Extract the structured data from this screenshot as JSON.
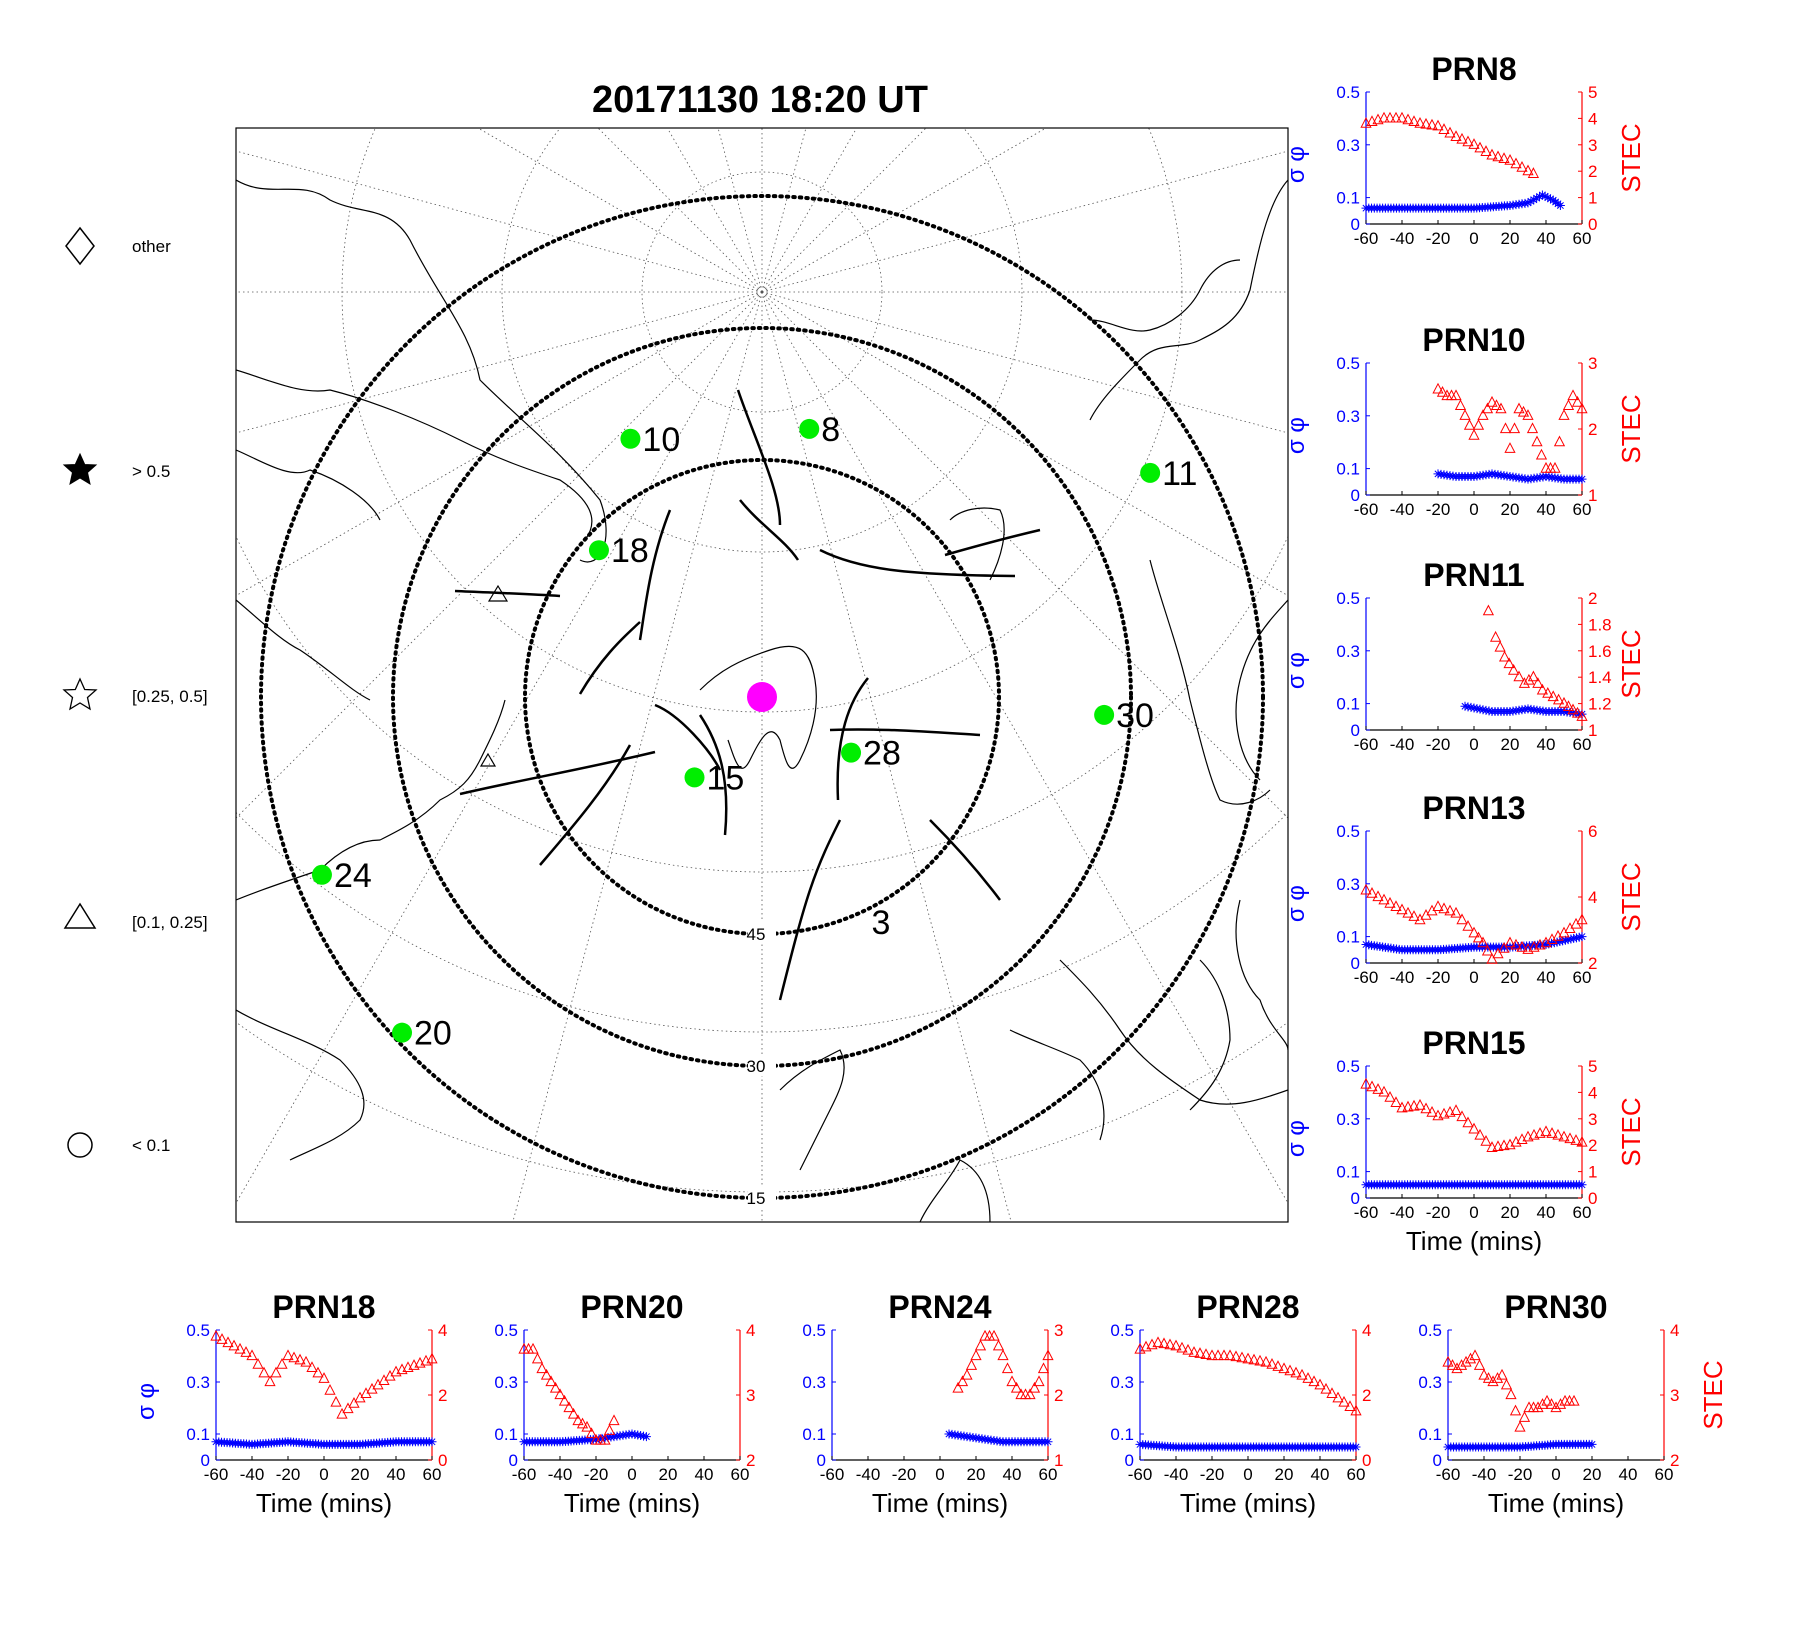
{
  "figure": {
    "title": "20171130 18:20 UT",
    "colors": {
      "sigma": "#0000ff",
      "stec": "#ff0000",
      "satellite": "#00ee00",
      "station": "#ff00ff"
    }
  },
  "legend": {
    "items": [
      {
        "symbol": "diamond",
        "label": "other"
      },
      {
        "symbol": "filled-star",
        "label": "> 0.5"
      },
      {
        "symbol": "open-star",
        "label": "[0.25, 0.5]"
      },
      {
        "symbol": "triangle",
        "label": "[0.1, 0.25]"
      },
      {
        "symbol": "circle",
        "label": "< 0.1"
      }
    ]
  },
  "chart_data": [
    {
      "type": "polar-skymap",
      "title": "20171130 18:20 UT",
      "elevation_rings": [
        {
          "label": "45"
        },
        {
          "label": "30"
        },
        {
          "label": "15"
        }
      ],
      "satellites": [
        {
          "prn": "8",
          "azimuth": 10,
          "elevation": 41
        },
        {
          "prn": "10",
          "azimuth": -27,
          "elevation": 39
        },
        {
          "prn": "11",
          "azimuth": 60,
          "elevation": 21
        },
        {
          "prn": "18",
          "azimuth": -48,
          "elevation": 47
        },
        {
          "prn": "15",
          "azimuth": -140,
          "elevation": 60
        },
        {
          "prn": "28",
          "azimuth": 122,
          "elevation": 60
        },
        {
          "prn": "30",
          "azimuth": 93,
          "elevation": 33
        },
        {
          "prn": "24",
          "azimuth": -112,
          "elevation": 18
        },
        {
          "prn": "20",
          "azimuth": -133,
          "elevation": 16
        },
        {
          "prn": "3",
          "azimuth": 152,
          "elevation": 43
        }
      ]
    },
    {
      "type": "line",
      "title": "PRN8",
      "xlabel": "",
      "ylabel_left": "σ φ",
      "ylabel_right": "STEC",
      "xlim": [
        -60,
        60
      ],
      "ylim_left": [
        0,
        0.5
      ],
      "ylim_right": [
        0,
        5
      ],
      "xticks": [
        "-60",
        "-40",
        "-20",
        "0",
        "20",
        "40",
        "60"
      ],
      "yticks_left": [
        "0",
        "0.1",
        "0.3",
        "0.5"
      ],
      "yticks_right": [
        "0",
        "1",
        "2",
        "3",
        "4",
        "5"
      ],
      "series": [
        {
          "name": "sigma_phi",
          "axis": "left",
          "marker": "asterisk",
          "x": [
            -60,
            -40,
            -20,
            0,
            20,
            30,
            38,
            44,
            48
          ],
          "values": [
            0.06,
            0.06,
            0.06,
            0.06,
            0.07,
            0.08,
            0.11,
            0.09,
            0.07
          ]
        },
        {
          "name": "STEC",
          "axis": "right",
          "marker": "triangle",
          "x": [
            -60,
            -50,
            -40,
            -30,
            -20,
            -10,
            0,
            10,
            20,
            30,
            33
          ],
          "values": [
            3.8,
            4.0,
            4.0,
            3.8,
            3.7,
            3.3,
            3.0,
            2.6,
            2.4,
            2.0,
            1.9
          ]
        }
      ]
    },
    {
      "type": "line",
      "title": "PRN10",
      "xlabel": "",
      "ylabel_left": "σ φ",
      "ylabel_right": "STEC",
      "xlim": [
        -60,
        60
      ],
      "ylim_left": [
        0,
        0.5
      ],
      "ylim_right": [
        1,
        3
      ],
      "xticks": [
        "-60",
        "-40",
        "-20",
        "0",
        "20",
        "40",
        "60"
      ],
      "yticks_left": [
        "0",
        "0.1",
        "0.3",
        "0.5"
      ],
      "yticks_right": [
        "1",
        "2",
        "3"
      ],
      "series": [
        {
          "name": "sigma_phi",
          "axis": "left",
          "marker": "asterisk",
          "x": [
            -20,
            -10,
            0,
            10,
            20,
            30,
            40,
            50,
            60
          ],
          "values": [
            0.08,
            0.07,
            0.07,
            0.08,
            0.07,
            0.06,
            0.07,
            0.06,
            0.06
          ]
        },
        {
          "name": "STEC",
          "axis": "right",
          "marker": "triangle",
          "x": [
            -20,
            -15,
            -10,
            -5,
            0,
            5,
            10,
            15,
            20,
            25,
            30,
            35,
            40,
            45,
            50,
            55,
            60
          ],
          "values": [
            2.6,
            2.5,
            2.5,
            2.2,
            1.9,
            2.2,
            2.4,
            2.3,
            1.7,
            2.3,
            2.2,
            1.8,
            1.4,
            1.4,
            2.2,
            2.5,
            2.3
          ]
        }
      ]
    },
    {
      "type": "line",
      "title": "PRN11",
      "xlabel": "",
      "ylabel_left": "σ φ",
      "ylabel_right": "STEC",
      "xlim": [
        -60,
        60
      ],
      "ylim_left": [
        0,
        0.5
      ],
      "ylim_right": [
        1,
        2
      ],
      "xticks": [
        "-60",
        "-40",
        "-20",
        "0",
        "20",
        "40",
        "60"
      ],
      "yticks_left": [
        "0",
        "0.1",
        "0.3",
        "0.5"
      ],
      "yticks_right": [
        "1",
        "1.2",
        "1.4",
        "1.6",
        "1.8",
        "2"
      ],
      "series": [
        {
          "name": "sigma_phi",
          "axis": "left",
          "marker": "asterisk",
          "x": [
            -5,
            10,
            20,
            30,
            40,
            50,
            60
          ],
          "values": [
            0.09,
            0.07,
            0.07,
            0.08,
            0.07,
            0.07,
            0.06
          ]
        },
        {
          "name": "STEC",
          "axis": "right",
          "marker": "triangle",
          "x": [
            8,
            12,
            17,
            22,
            28,
            33,
            38,
            44,
            50,
            55,
            60
          ],
          "values": [
            1.9,
            1.7,
            1.55,
            1.45,
            1.35,
            1.4,
            1.3,
            1.25,
            1.2,
            1.15,
            1.1
          ]
        }
      ]
    },
    {
      "type": "line",
      "title": "PRN13",
      "xlabel": "",
      "ylabel_left": "σ φ",
      "ylabel_right": "STEC",
      "xlim": [
        -60,
        60
      ],
      "ylim_left": [
        0,
        0.5
      ],
      "ylim_right": [
        2,
        6
      ],
      "xticks": [
        "-60",
        "-40",
        "-20",
        "0",
        "20",
        "40",
        "60"
      ],
      "yticks_left": [
        "0",
        "0.1",
        "0.3",
        "0.5"
      ],
      "yticks_right": [
        "2",
        "4",
        "6"
      ],
      "series": [
        {
          "name": "sigma_phi",
          "axis": "left",
          "marker": "asterisk",
          "x": [
            -60,
            -40,
            -20,
            0,
            20,
            40,
            60
          ],
          "values": [
            0.07,
            0.05,
            0.05,
            0.06,
            0.06,
            0.07,
            0.1
          ]
        },
        {
          "name": "STEC",
          "axis": "right",
          "marker": "triangle",
          "x": [
            -60,
            -50,
            -40,
            -30,
            -20,
            -10,
            0,
            5,
            10,
            20,
            30,
            40,
            50,
            60
          ],
          "values": [
            4.2,
            3.9,
            3.6,
            3.3,
            3.7,
            3.5,
            2.9,
            2.6,
            2.1,
            2.6,
            2.4,
            2.6,
            2.9,
            3.3
          ]
        }
      ]
    },
    {
      "type": "line",
      "title": "PRN15",
      "xlabel": "Time (mins)",
      "ylabel_left": "σ φ",
      "ylabel_right": "STEC",
      "xlim": [
        -60,
        60
      ],
      "ylim_left": [
        0,
        0.5
      ],
      "ylim_right": [
        0,
        5
      ],
      "xticks": [
        "-60",
        "-40",
        "-20",
        "0",
        "20",
        "40",
        "60"
      ],
      "yticks_left": [
        "0",
        "0.1",
        "0.3",
        "0.5"
      ],
      "yticks_right": [
        "0",
        "1",
        "2",
        "3",
        "4",
        "5"
      ],
      "series": [
        {
          "name": "sigma_phi",
          "axis": "left",
          "marker": "asterisk",
          "x": [
            -60,
            -40,
            -20,
            0,
            20,
            40,
            60
          ],
          "values": [
            0.05,
            0.05,
            0.05,
            0.05,
            0.05,
            0.05,
            0.05
          ]
        },
        {
          "name": "STEC",
          "axis": "right",
          "marker": "triangle",
          "x": [
            -60,
            -50,
            -40,
            -30,
            -20,
            -10,
            0,
            10,
            20,
            30,
            40,
            50,
            60
          ],
          "values": [
            4.3,
            4.0,
            3.4,
            3.5,
            3.1,
            3.3,
            2.6,
            1.9,
            2.0,
            2.3,
            2.5,
            2.3,
            2.1
          ]
        }
      ]
    },
    {
      "type": "line",
      "title": "PRN18",
      "xlabel": "Time (mins)",
      "ylabel_left": "σ φ",
      "ylabel_right": "",
      "xlim": [
        -60,
        60
      ],
      "ylim_left": [
        0,
        0.5
      ],
      "ylim_right": [
        0,
        4
      ],
      "xticks": [
        "-60",
        "-40",
        "-20",
        "0",
        "20",
        "40",
        "60"
      ],
      "yticks_left": [
        "0",
        "0.1",
        "0.3",
        "0.5"
      ],
      "yticks_right": [
        "0",
        "2",
        "4"
      ],
      "series": [
        {
          "name": "sigma_phi",
          "axis": "left",
          "marker": "asterisk",
          "x": [
            -60,
            -40,
            -20,
            0,
            20,
            40,
            60
          ],
          "values": [
            0.07,
            0.06,
            0.07,
            0.06,
            0.06,
            0.07,
            0.07
          ]
        },
        {
          "name": "STEC",
          "axis": "right",
          "marker": "triangle",
          "x": [
            -60,
            -50,
            -40,
            -30,
            -20,
            -10,
            0,
            10,
            20,
            30,
            40,
            50,
            60
          ],
          "values": [
            3.8,
            3.5,
            3.2,
            2.4,
            3.2,
            3.0,
            2.5,
            1.4,
            1.9,
            2.3,
            2.7,
            2.9,
            3.1
          ]
        }
      ]
    },
    {
      "type": "line",
      "title": "PRN20",
      "xlabel": "Time (mins)",
      "ylabel_left": "",
      "ylabel_right": "",
      "xlim": [
        -60,
        60
      ],
      "ylim_left": [
        0,
        0.5
      ],
      "ylim_right": [
        2,
        4
      ],
      "xticks": [
        "-60",
        "-40",
        "-20",
        "0",
        "20",
        "40",
        "60"
      ],
      "yticks_left": [
        "0",
        "0.1",
        "0.3",
        "0.5"
      ],
      "yticks_right": [
        "2",
        "3",
        "4"
      ],
      "series": [
        {
          "name": "sigma_phi",
          "axis": "left",
          "marker": "asterisk",
          "x": [
            -60,
            -40,
            -20,
            -10,
            0,
            8
          ],
          "values": [
            0.07,
            0.07,
            0.08,
            0.09,
            0.1,
            0.09
          ]
        },
        {
          "name": "STEC",
          "axis": "right",
          "marker": "triangle",
          "x": [
            -60,
            -55,
            -50,
            -45,
            -40,
            -35,
            -30,
            -25,
            -20,
            -15,
            -10
          ],
          "values": [
            3.7,
            3.7,
            3.4,
            3.2,
            3.0,
            2.8,
            2.6,
            2.5,
            2.3,
            2.3,
            2.6
          ]
        }
      ]
    },
    {
      "type": "line",
      "title": "PRN24",
      "xlabel": "Time (mins)",
      "ylabel_left": "",
      "ylabel_right": "",
      "xlim": [
        -60,
        60
      ],
      "ylim_left": [
        0,
        0.5
      ],
      "ylim_right": [
        1,
        3
      ],
      "xticks": [
        "-60",
        "-40",
        "-20",
        "0",
        "20",
        "40",
        "60"
      ],
      "yticks_left": [
        "0",
        "0.1",
        "0.3",
        "0.5"
      ],
      "yticks_right": [
        "1",
        "2",
        "3"
      ],
      "series": [
        {
          "name": "sigma_phi",
          "axis": "left",
          "marker": "asterisk",
          "x": [
            5,
            15,
            25,
            35,
            45,
            55,
            60
          ],
          "values": [
            0.1,
            0.09,
            0.08,
            0.07,
            0.07,
            0.07,
            0.07
          ]
        },
        {
          "name": "STEC",
          "axis": "right",
          "marker": "triangle",
          "x": [
            10,
            15,
            20,
            25,
            30,
            35,
            40,
            45,
            50,
            55,
            60
          ],
          "values": [
            2.1,
            2.3,
            2.6,
            2.9,
            2.9,
            2.6,
            2.2,
            2.0,
            2.0,
            2.2,
            2.6
          ]
        }
      ]
    },
    {
      "type": "line",
      "title": "PRN28",
      "xlabel": "Time (mins)",
      "ylabel_left": "",
      "ylabel_right": "",
      "xlim": [
        -60,
        60
      ],
      "ylim_left": [
        0,
        0.5
      ],
      "ylim_right": [
        0,
        4
      ],
      "xticks": [
        "-60",
        "-40",
        "-20",
        "0",
        "20",
        "40",
        "60"
      ],
      "yticks_left": [
        "0",
        "0.1",
        "0.3",
        "0.5"
      ],
      "yticks_right": [
        "0",
        "2",
        "4"
      ],
      "series": [
        {
          "name": "sigma_phi",
          "axis": "left",
          "marker": "asterisk",
          "x": [
            -60,
            -40,
            -20,
            0,
            20,
            40,
            60
          ],
          "values": [
            0.06,
            0.05,
            0.05,
            0.05,
            0.05,
            0.05,
            0.05
          ]
        },
        {
          "name": "STEC",
          "axis": "right",
          "marker": "triangle",
          "x": [
            -60,
            -50,
            -40,
            -30,
            -20,
            -10,
            0,
            10,
            20,
            30,
            40,
            50,
            60
          ],
          "values": [
            3.4,
            3.6,
            3.5,
            3.3,
            3.2,
            3.2,
            3.1,
            3.0,
            2.8,
            2.6,
            2.3,
            1.9,
            1.5
          ]
        }
      ]
    },
    {
      "type": "line",
      "title": "PRN30",
      "xlabel": "Time (mins)",
      "ylabel_left": "",
      "ylabel_right": "STEC",
      "xlim": [
        -60,
        60
      ],
      "ylim_left": [
        0,
        0.5
      ],
      "ylim_right": [
        2,
        4
      ],
      "xticks": [
        "-60",
        "-40",
        "-20",
        "0",
        "20",
        "40",
        "60"
      ],
      "yticks_left": [
        "0",
        "0.1",
        "0.3",
        "0.5"
      ],
      "yticks_right": [
        "2",
        "3",
        "4"
      ],
      "series": [
        {
          "name": "sigma_phi",
          "axis": "left",
          "marker": "asterisk",
          "x": [
            -60,
            -40,
            -20,
            0,
            20
          ],
          "values": [
            0.05,
            0.05,
            0.05,
            0.06,
            0.06
          ]
        },
        {
          "name": "STEC",
          "axis": "right",
          "marker": "triangle",
          "x": [
            -60,
            -55,
            -50,
            -45,
            -40,
            -35,
            -30,
            -25,
            -20,
            -15,
            -10,
            -5,
            0,
            5,
            10
          ],
          "values": [
            3.5,
            3.4,
            3.5,
            3.6,
            3.3,
            3.2,
            3.3,
            3.0,
            2.5,
            2.8,
            2.8,
            2.9,
            2.8,
            2.9,
            2.9
          ]
        }
      ]
    }
  ]
}
